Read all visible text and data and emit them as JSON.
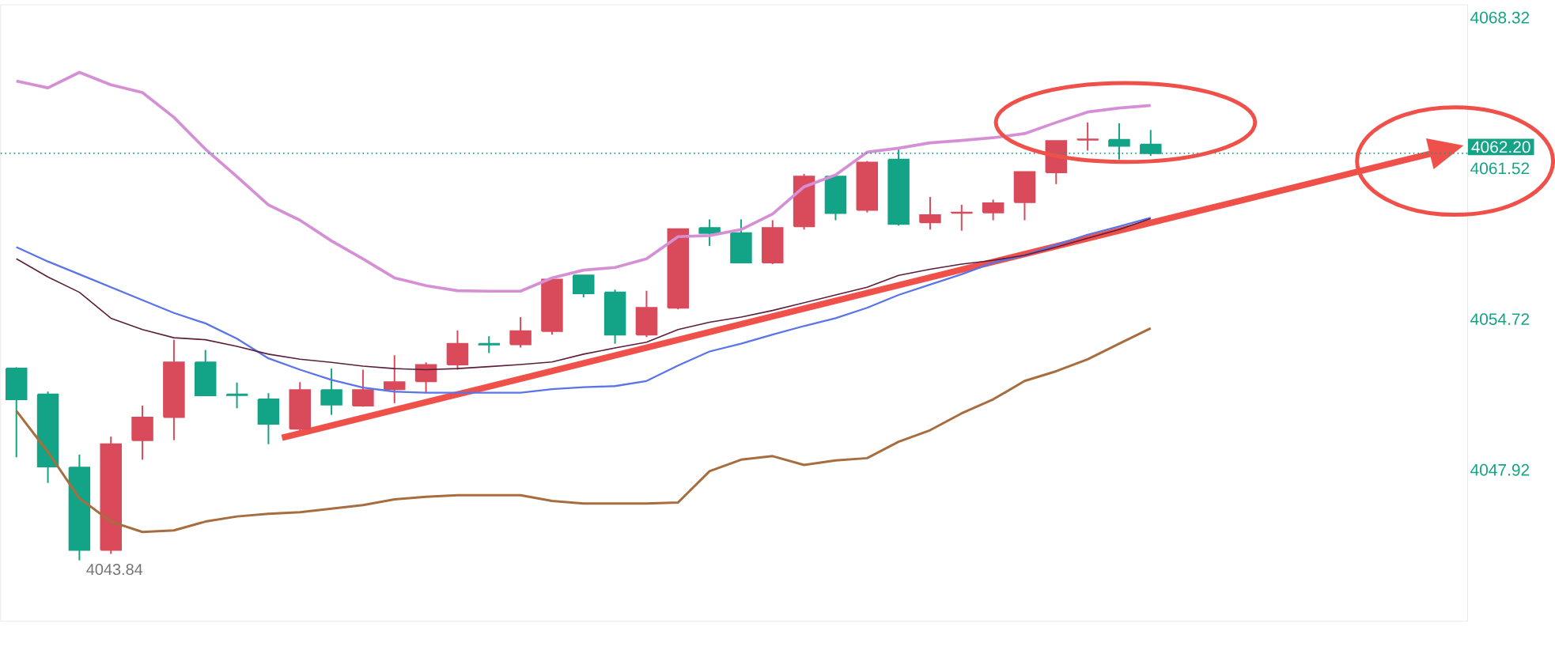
{
  "chart_data": {
    "type": "candlestick",
    "categories": [
      null,
      null,
      null,
      null,
      null,
      null,
      null,
      null,
      null,
      null,
      null,
      null,
      null,
      null,
      null,
      null,
      null,
      null,
      null,
      null,
      null,
      null,
      null,
      null,
      null,
      null,
      null,
      null,
      null,
      null,
      null,
      null,
      null,
      null,
      null,
      null,
      null
    ],
    "ohlc": [
      [
        4052.49,
        4052.55,
        4048.49,
        4051.1
      ],
      [
        4051.33,
        4051.45,
        4047.33,
        4048.07
      ],
      [
        4048.03,
        4048.61,
        4043.84,
        4044.31
      ],
      [
        4044.31,
        4049.42,
        4044.13,
        4049.08
      ],
      [
        4049.26,
        4050.82,
        4048.38,
        4050.28
      ],
      [
        4050.3,
        4053.79,
        4049.26,
        4052.77
      ],
      [
        4052.77,
        4053.33,
        4051.28,
        4051.28
      ],
      [
        4051.33,
        4051.86,
        4050.7,
        4051.29
      ],
      [
        4051.1,
        4051.38,
        4049.08,
        4050.0
      ],
      [
        4049.77,
        4051.88,
        4049.7,
        4051.52
      ],
      [
        4051.52,
        4052.49,
        4050.4,
        4050.86
      ],
      [
        4050.82,
        4052.44,
        4050.77,
        4051.52
      ],
      [
        4051.56,
        4053.09,
        4050.93,
        4051.88
      ],
      [
        4051.91,
        4052.77,
        4051.38,
        4052.65
      ],
      [
        4052.67,
        4054.21,
        4052.44,
        4053.61
      ],
      [
        4053.61,
        4053.95,
        4053.19,
        4053.57
      ],
      [
        4053.58,
        4054.81,
        4053.44,
        4054.18
      ],
      [
        4054.18,
        4056.56,
        4054.02,
        4056.51
      ],
      [
        4056.69,
        4056.69,
        4055.7,
        4055.88
      ],
      [
        4055.93,
        4056.05,
        4053.61,
        4054.02
      ],
      [
        4054.02,
        4056.0,
        4053.91,
        4055.23
      ],
      [
        4055.23,
        4058.78,
        4055.16,
        4058.78
      ],
      [
        4058.83,
        4059.22,
        4058.02,
        4058.6
      ],
      [
        4058.6,
        4059.22,
        4057.25,
        4057.27
      ],
      [
        4057.27,
        4059.18,
        4057.2,
        4058.83
      ],
      [
        4058.9,
        4061.27,
        4058.76,
        4061.15
      ],
      [
        4061.15,
        4061.27,
        4059.18,
        4059.5
      ],
      [
        4059.64,
        4061.85,
        4059.53,
        4061.78
      ],
      [
        4061.92,
        4062.39,
        4058.94,
        4059.01
      ],
      [
        4059.08,
        4060.23,
        4058.76,
        4059.41
      ],
      [
        4059.51,
        4059.88,
        4058.71,
        4059.53
      ],
      [
        4059.53,
        4060.11,
        4059.18,
        4059.95
      ],
      [
        4059.99,
        4061.36,
        4059.18,
        4061.36
      ],
      [
        4061.34,
        4062.76,
        4060.81,
        4062.76
      ],
      [
        4062.81,
        4063.59,
        4062.32,
        4062.83
      ],
      [
        4062.81,
        4063.55,
        4061.92,
        4062.53
      ],
      [
        4062.6,
        4063.25,
        4062.08,
        4062.2
      ]
    ],
    "colors": [
      "#13a386",
      "#13a386",
      "#13a386",
      "#d94a5b",
      "#d94a5b",
      "#d94a5b",
      "#13a386",
      "#13a386",
      "#13a386",
      "#d94a5b",
      "#13a386",
      "#d94a5b",
      "#d94a5b",
      "#d94a5b",
      "#d94a5b",
      "#13a386",
      "#d94a5b",
      "#d94a5b",
      "#13a386",
      "#13a386",
      "#d94a5b",
      "#d94a5b",
      "#13a386",
      "#13a386",
      "#d94a5b",
      "#d94a5b",
      "#13a386",
      "#d94a5b",
      "#13a386",
      "#d94a5b",
      "#d94a5b",
      "#d94a5b",
      "#d94a5b",
      "#d94a5b",
      "#d94a5b",
      "#13a386",
      "#13a386"
    ],
    "series": [
      {
        "type": "line",
        "color": "#d58fd5",
        "values": [
          4065.46,
          4065.15,
          4065.85,
          4065.29,
          4064.94,
          4063.82,
          4062.39,
          4061.15,
          4059.87,
          4059.18,
          4058.25,
          4057.44,
          4056.58,
          4056.23,
          4056.0,
          4055.98,
          4055.98,
          4056.58,
          4056.93,
          4057.05,
          4057.44,
          4058.44,
          4058.49,
          4058.76,
          4059.46,
          4060.69,
          4061.22,
          4062.25,
          4062.43,
          4062.67,
          4062.78,
          4062.9,
          4063.09,
          4063.59,
          4064.06,
          4064.24,
          4064.36
        ]
      },
      {
        "type": "line",
        "color": "#a86d3e",
        "values": [
          4050.58,
          4048.73,
          4046.64,
          4045.59,
          4045.12,
          4045.19,
          4045.59,
          4045.82,
          4045.94,
          4046.01,
          4046.17,
          4046.33,
          4046.59,
          4046.71,
          4046.78,
          4046.78,
          4046.78,
          4046.52,
          4046.4,
          4046.4,
          4046.4,
          4046.45,
          4047.86,
          4048.38,
          4048.54,
          4048.14,
          4048.35,
          4048.45,
          4049.19,
          4049.71,
          4050.47,
          4051.1,
          4051.93,
          4052.37,
          4052.91,
          4053.61,
          4054.31
        ]
      },
      {
        "type": "line",
        "color": "#5b74e8",
        "values": [
          4057.97,
          4057.32,
          4056.74,
          4056.16,
          4055.58,
          4055.0,
          4054.53,
          4053.84,
          4052.95,
          4052.44,
          4051.98,
          4051.63,
          4051.45,
          4051.4,
          4051.4,
          4051.4,
          4051.4,
          4051.56,
          4051.65,
          4051.7,
          4051.93,
          4052.63,
          4053.26,
          4053.61,
          4054.02,
          4054.41,
          4054.76,
          4055.23,
          4055.81,
          4056.28,
          4056.74,
          4057.27,
          4057.6,
          4058.07,
          4058.53,
          4058.9,
          4059.29
        ]
      },
      {
        "type": "line",
        "color": "#5c1e3c",
        "values": [
          4057.44,
          4056.62,
          4055.93,
          4054.76,
          4054.25,
          4053.88,
          4053.79,
          4053.49,
          4053.14,
          4052.91,
          4052.77,
          4052.6,
          4052.49,
          4052.44,
          4052.49,
          4052.58,
          4052.67,
          4052.79,
          4053.14,
          4053.42,
          4053.68,
          4054.25,
          4054.58,
          4054.81,
          4055.11,
          4055.46,
          4055.81,
          4056.16,
          4056.69,
          4056.97,
          4057.2,
          4057.37,
          4057.6,
          4057.97,
          4058.37,
          4058.76,
          4059.25
        ]
      }
    ],
    "ylim": [
      4041.1,
      4068.9
    ],
    "yticks": [
      4068.32,
      4061.52,
      4054.72,
      4047.92
    ],
    "tick_labels": "y",
    "ref_lines": [
      {
        "axis": "y",
        "value": 4062.2,
        "label": "4062.20",
        "color": "#13a386",
        "line_style": "dotted"
      }
    ],
    "annotations": [
      {
        "text": "4043.84",
        "y": 4043.84
      }
    ]
  }
}
